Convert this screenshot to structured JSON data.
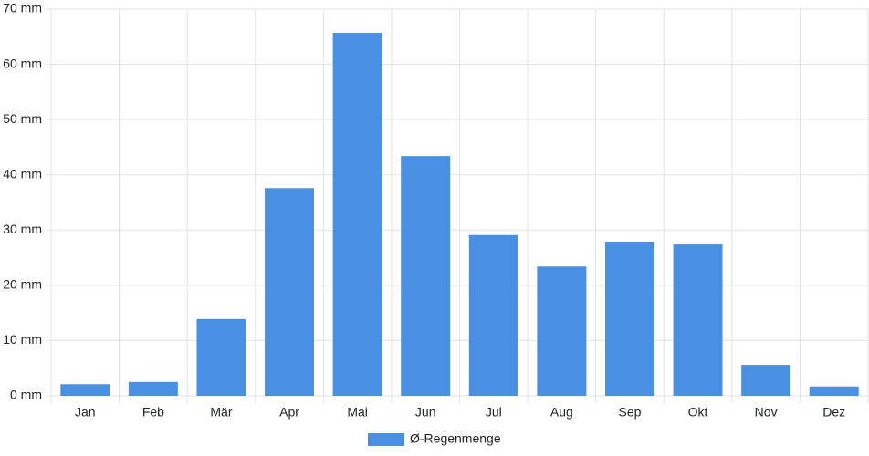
{
  "chart_data": {
    "type": "bar",
    "categories": [
      "Jan",
      "Feb",
      "Mär",
      "Apr",
      "Mai",
      "Jun",
      "Jul",
      "Aug",
      "Sep",
      "Okt",
      "Nov",
      "Dez"
    ],
    "series": [
      {
        "name": "Ø-Regenmenge",
        "color": "#4a90e2",
        "values": [
          2.1,
          2.5,
          13.9,
          37.6,
          65.7,
          43.4,
          29.1,
          23.4,
          27.9,
          27.4,
          5.6,
          1.7
        ]
      }
    ],
    "ylim": [
      0,
      70
    ],
    "yticks": [
      {
        "value": 0,
        "label": "0 mm"
      },
      {
        "value": 10,
        "label": "10 mm"
      },
      {
        "value": 20,
        "label": "20 mm"
      },
      {
        "value": 30,
        "label": "30 mm"
      },
      {
        "value": 40,
        "label": "40 mm"
      },
      {
        "value": 50,
        "label": "50 mm"
      },
      {
        "value": 60,
        "label": "60 mm"
      },
      {
        "value": 70,
        "label": "70 mm"
      }
    ],
    "grid": true,
    "legend": "bottom"
  }
}
